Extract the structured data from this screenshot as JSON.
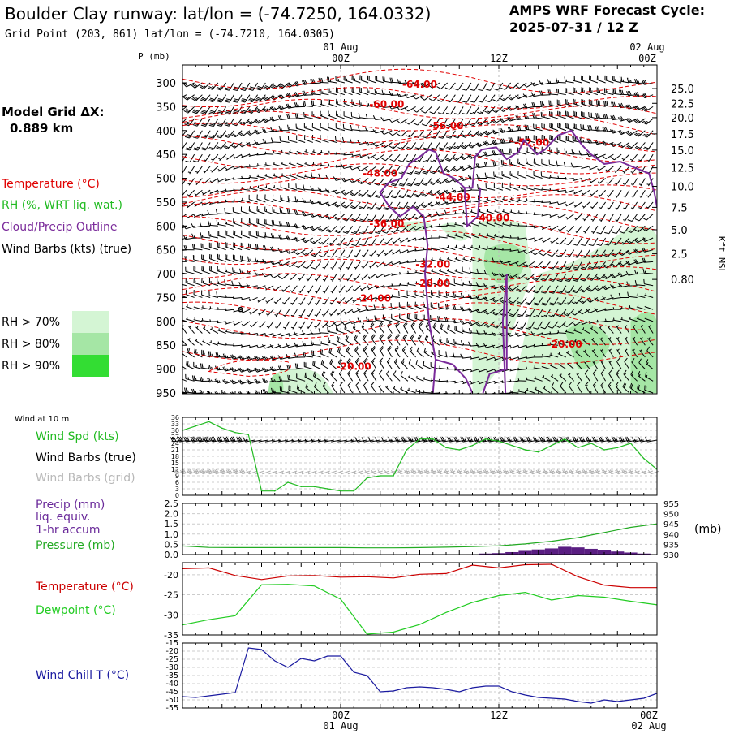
{
  "header": {
    "title": "Boulder Clay runway:  lat/lon = (-74.7250, 164.0332)",
    "subtitle": "Grid Point (203, 861) lat/lon = (-74.7210, 164.0305)",
    "cycle_label": "AMPS WRF Forecast Cycle:",
    "cycle_value": "2025-07-31 / 12  Z"
  },
  "legend": {
    "model_grid_label": "Model Grid ΔX:",
    "model_grid_value": "0.889 km",
    "temperature": "Temperature (°C)",
    "rh": "RH (%, WRT liq. wat.)",
    "cloud": "Cloud/Precip Outline",
    "wind_barbs": "Wind Barbs (kts) (true)",
    "rh70": "RH > 70%",
    "rh80": "RH > 80%",
    "rh90": "RH > 90%"
  },
  "colors": {
    "temperature": "#e00000",
    "rh": "#22bb22",
    "cloud": "#7a2a9a",
    "wind": "#000000",
    "grid_barbs": "#b0b0b0",
    "rh70": "#d4f5d4",
    "rh80": "#a5e6a5",
    "rh90": "#33dd33",
    "pressure": "#22aa22",
    "precip": "#5a1e82",
    "dewpoint": "#22cc22",
    "t_line": "#cc0000",
    "windchill": "#1a1aa0"
  },
  "time_axis": {
    "top_labels": [
      {
        "hour": 12,
        "date": "01 Aug",
        "time": "00Z"
      },
      {
        "hour": 24,
        "date": "",
        "time": "12Z"
      },
      {
        "hour": 36,
        "date": "02 Aug",
        "time": "00Z"
      }
    ],
    "bottom_labels": [
      {
        "hour": 12,
        "time": "00Z",
        "date": "01 Aug"
      },
      {
        "hour": 24,
        "time": "12Z",
        "date": ""
      },
      {
        "hour": 36,
        "time": "00Z",
        "date": "02 Aug"
      }
    ]
  },
  "chart_data": [
    {
      "type": "line",
      "name": "cross-section",
      "y_axis_title": "P (mb)",
      "right_axis_title": "Kft MSL",
      "pressure_ticks": [
        "300",
        "350",
        "400",
        "450",
        "500",
        "550",
        "600",
        "650",
        "700",
        "750",
        "800",
        "850",
        "900",
        "950"
      ],
      "height_ticks": [
        {
          "p": 312,
          "label": "25.0"
        },
        {
          "p": 343,
          "label": "22.5"
        },
        {
          "p": 373,
          "label": "20.0"
        },
        {
          "p": 407,
          "label": "17.5"
        },
        {
          "p": 441,
          "label": "15.0"
        },
        {
          "p": 478,
          "label": "12.5"
        },
        {
          "p": 517,
          "label": "10.0"
        },
        {
          "p": 561,
          "label": "7.5"
        },
        {
          "p": 608,
          "label": "5.0"
        },
        {
          "p": 658,
          "label": "2.5"
        },
        {
          "p": 712,
          "label": "0.80"
        }
      ],
      "isotherm_labels": [
        {
          "t": 18,
          "p": 303,
          "label": "-64.00"
        },
        {
          "t": 15.5,
          "p": 345,
          "label": "-60.00"
        },
        {
          "t": 20,
          "p": 390,
          "label": "-56.00"
        },
        {
          "t": 26.5,
          "p": 425,
          "label": "-52.00"
        },
        {
          "t": 15,
          "p": 490,
          "label": "-48.00"
        },
        {
          "t": 20.5,
          "p": 540,
          "label": "-44.00"
        },
        {
          "t": 23.5,
          "p": 583,
          "label": "-40.00"
        },
        {
          "t": 15.5,
          "p": 595,
          "label": "-36.00"
        },
        {
          "t": 19,
          "p": 680,
          "label": "-32.00"
        },
        {
          "t": 19,
          "p": 720,
          "label": "-28.00"
        },
        {
          "t": 14.5,
          "p": 752,
          "label": "-24.00"
        },
        {
          "t": 29,
          "p": 848,
          "label": "-20.00"
        },
        {
          "t": 13,
          "p": 895,
          "label": "-20.00"
        }
      ]
    },
    {
      "type": "line",
      "name": "wind-10m",
      "panel_title": "Wind at 10 m",
      "labels": [
        "Wind Spd (kts)",
        "Wind Barbs (true)",
        "Wind Barbs (grid)"
      ],
      "y_ticks": [
        "36",
        "33",
        "30",
        "27",
        "24",
        "21",
        "18",
        "15",
        "12",
        "9",
        "6",
        "3",
        "0"
      ],
      "ylim": [
        0,
        36
      ],
      "x": [
        0,
        1,
        2,
        3,
        4,
        5,
        6,
        7,
        8,
        9,
        10,
        11,
        12,
        13,
        14,
        15,
        16,
        17,
        18,
        19,
        20,
        21,
        22,
        23,
        24,
        25,
        26,
        27,
        28,
        29,
        30,
        31,
        32,
        33,
        34,
        35,
        36
      ],
      "values": [
        30,
        32,
        34,
        31,
        29,
        28,
        2,
        2,
        6,
        4,
        4,
        3,
        2,
        2,
        8,
        9,
        9,
        21,
        26,
        26,
        22,
        21,
        23,
        26,
        25,
        23,
        21,
        20,
        23,
        26,
        22,
        24,
        21,
        22,
        24,
        17,
        12
      ]
    },
    {
      "type": "line",
      "name": "precip-pressure",
      "labels": [
        "Precip (mm)",
        "liq. equiv.",
        "1-hr accum",
        "Pressure (mb)"
      ],
      "left_ticks": [
        "2.5",
        "2.0",
        "1.5",
        "1.0",
        "0.5",
        "0.0"
      ],
      "right_ticks": [
        "955",
        "950",
        "945",
        "940",
        "935",
        "930"
      ],
      "right_unit": "(mb)",
      "ylim_left": [
        0,
        2.5
      ],
      "ylim_right": [
        930,
        955
      ],
      "x": [
        0,
        2,
        4,
        6,
        8,
        10,
        12,
        14,
        16,
        18,
        20,
        22,
        24,
        26,
        28,
        30,
        32,
        34,
        36
      ],
      "pressure": [
        934.2,
        933.5,
        933.4,
        933.4,
        933.4,
        933.4,
        933.4,
        933.3,
        933.3,
        933.4,
        933.6,
        933.9,
        934.3,
        935.2,
        936.5,
        938.3,
        940.8,
        943.3,
        945.0
      ],
      "precip_x": [
        22,
        23,
        24,
        25,
        26,
        27,
        28,
        29,
        30,
        31,
        32,
        33,
        34,
        35
      ],
      "precip": [
        0.02,
        0.05,
        0.07,
        0.12,
        0.18,
        0.25,
        0.3,
        0.38,
        0.35,
        0.28,
        0.2,
        0.15,
        0.1,
        0.05
      ]
    },
    {
      "type": "line",
      "name": "temperature-dewpoint",
      "labels": [
        "Temperature (°C)",
        "Dewpoint (°C)"
      ],
      "y_ticks": [
        "-20",
        "-25",
        "-30",
        "-35"
      ],
      "ylim": [
        -35,
        -17
      ],
      "x": [
        0,
        2,
        4,
        6,
        8,
        10,
        12,
        14,
        16,
        18,
        20,
        22,
        24,
        26,
        28,
        30,
        32,
        34,
        36
      ],
      "temperature": [
        -18.5,
        -18.3,
        -20.2,
        -21.2,
        -20.3,
        -20.2,
        -20.6,
        -20.5,
        -20.8,
        -19.9,
        -19.7,
        -17.6,
        -18.3,
        -17.5,
        -17.4,
        -20.5,
        -22.6,
        -23.2,
        -23.2
      ],
      "dewpoint": [
        -32.5,
        -31.2,
        -30.2,
        -22.5,
        -22.4,
        -22.8,
        -26.1,
        -34.8,
        -34.3,
        -32.4,
        -29.4,
        -26.9,
        -25.2,
        -24.4,
        -26.3,
        -25.2,
        -25.6,
        -26.6,
        -27.5
      ]
    },
    {
      "type": "line",
      "name": "wind-chill",
      "labels": [
        "Wind Chill T (°C)"
      ],
      "y_ticks": [
        "-15",
        "-20",
        "-25",
        "-30",
        "-35",
        "-40",
        "-45",
        "-50",
        "-55"
      ],
      "ylim": [
        -55,
        -15
      ],
      "x": [
        0,
        1,
        2,
        3,
        4,
        5,
        6,
        7,
        8,
        9,
        10,
        11,
        12,
        13,
        14,
        15,
        16,
        17,
        18,
        19,
        20,
        21,
        22,
        23,
        24,
        25,
        26,
        27,
        28,
        29,
        30,
        31,
        32,
        33,
        34,
        35,
        36
      ],
      "values": [
        -48,
        -48.5,
        -47.5,
        -46.5,
        -45.5,
        -18,
        -19,
        -26,
        -30,
        -24.5,
        -26,
        -23,
        -23,
        -33,
        -35,
        -45,
        -44.5,
        -42.5,
        -42,
        -42.5,
        -43.5,
        -45,
        -42.5,
        -41.5,
        -41.5,
        -45,
        -47,
        -48.5,
        -49,
        -49.5,
        -51,
        -52,
        -50,
        -51,
        -50,
        -49,
        -46
      ]
    }
  ]
}
